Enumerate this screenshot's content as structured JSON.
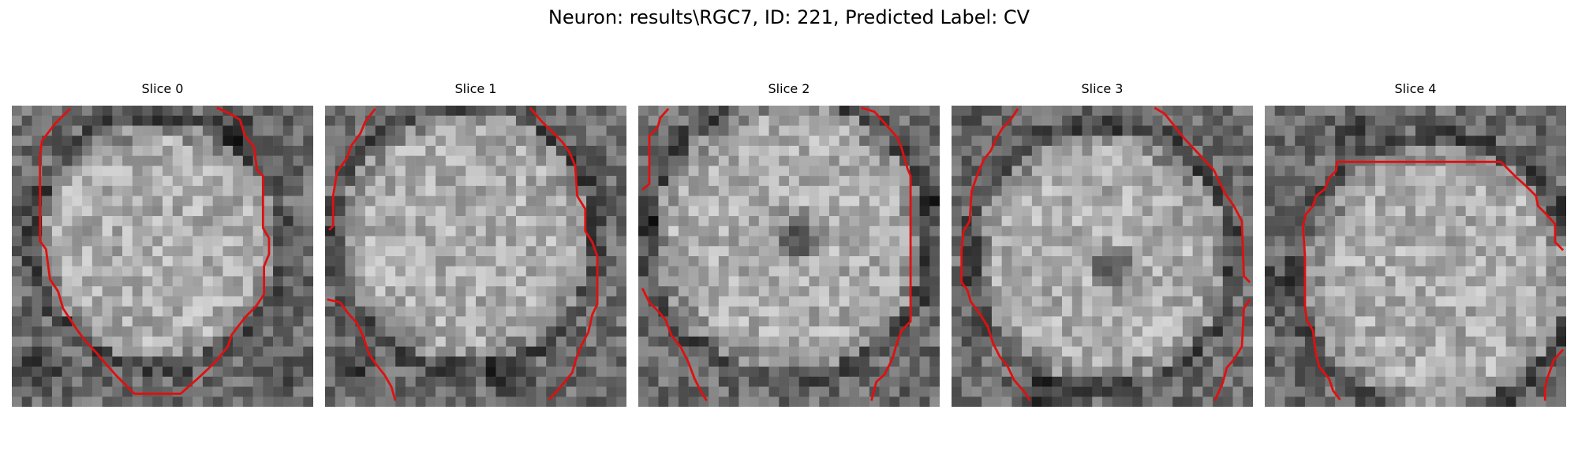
{
  "figure": {
    "title": "Neuron: results\\RGC7, ID: 221, Predicted Label: CV"
  },
  "panels": [
    {
      "title": "Slice 0",
      "image": "grayscale-microscopy-tile",
      "overlay": "red-contour"
    },
    {
      "title": "Slice 1",
      "image": "grayscale-microscopy-tile",
      "overlay": "red-contour"
    },
    {
      "title": "Slice 2",
      "image": "grayscale-microscopy-tile",
      "overlay": "red-contour"
    },
    {
      "title": "Slice 3",
      "image": "grayscale-microscopy-tile",
      "overlay": "red-contour"
    },
    {
      "title": "Slice 4",
      "image": "grayscale-microscopy-tile",
      "overlay": "red-contour"
    }
  ],
  "colors": {
    "contour": "#e01010",
    "background": "#ffffff"
  }
}
